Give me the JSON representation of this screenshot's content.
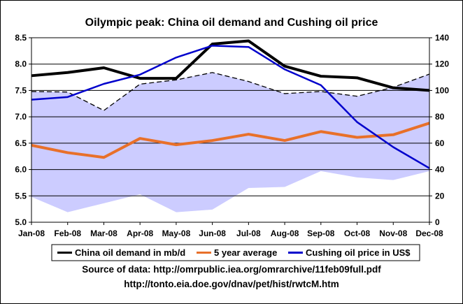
{
  "chart_data": {
    "type": "line",
    "title": "Oilympic peak: China oil demand and Cushing oil price",
    "categories": [
      "Jan-08",
      "Feb-08",
      "Mar-08",
      "Apr-08",
      "May-08",
      "Jun-08",
      "Jul-08",
      "Aug-08",
      "Sep-08",
      "Oct-08",
      "Nov-08",
      "Dec-08"
    ],
    "y_left": {
      "ylim": [
        5.0,
        8.5
      ],
      "ticks": [
        "5.0",
        "5.5",
        "6.0",
        "6.5",
        "7.0",
        "7.5",
        "8.0",
        "8.5"
      ]
    },
    "y_right": {
      "ylim": [
        0,
        140
      ],
      "ticks": [
        "0",
        "20",
        "40",
        "60",
        "80",
        "100",
        "120",
        "140"
      ]
    },
    "band": {
      "upper": [
        7.48,
        7.47,
        7.12,
        7.62,
        7.7,
        7.84,
        7.67,
        7.44,
        7.48,
        7.39,
        7.56,
        7.81
      ],
      "lower": [
        5.48,
        5.19,
        5.36,
        5.53,
        5.19,
        5.24,
        5.65,
        5.67,
        5.97,
        5.85,
        5.8,
        5.97
      ],
      "fill": "#ccccff"
    },
    "series": [
      {
        "name": "China oil demand in mb/d",
        "axis": "left",
        "color": "#000000",
        "width": 4,
        "values": [
          7.78,
          7.84,
          7.93,
          7.73,
          7.73,
          8.38,
          8.44,
          7.96,
          7.77,
          7.74,
          7.55,
          7.5
        ]
      },
      {
        "name": "5 year average",
        "axis": "left",
        "color": "#e8702a",
        "width": 4,
        "values": [
          6.46,
          6.32,
          6.23,
          6.59,
          6.47,
          6.55,
          6.67,
          6.55,
          6.72,
          6.61,
          6.66,
          6.88
        ]
      },
      {
        "name": "Cushing oil price in US$",
        "axis": "right",
        "color": "#0000cc",
        "width": 2.5,
        "values": [
          93,
          95,
          105,
          112,
          125,
          134,
          133,
          116,
          104,
          76,
          57,
          41
        ]
      }
    ],
    "grid": true,
    "legend": "bottom"
  },
  "source": {
    "line1": "Source of data: http://omrpublic.iea.org/omrarchive/11feb09full.pdf",
    "line2": "http://tonto.eia.doe.gov/dnav/pet/hist/rwtcM.htm"
  }
}
